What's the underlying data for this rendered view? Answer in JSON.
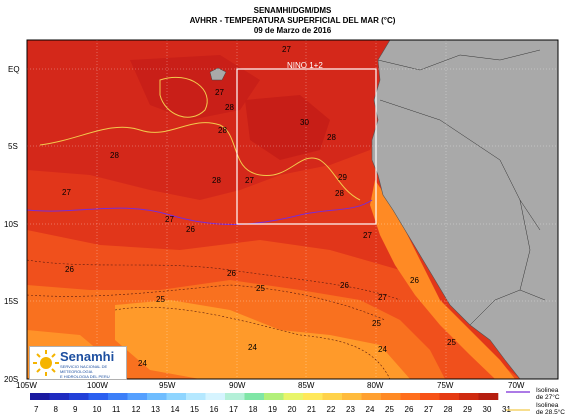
{
  "header": {
    "line1": "SENAMHI/DGM/DMS",
    "line2": "AVHRR - TEMPERATURA SUPERFICIAL DEL MAR (°C)",
    "line3": "09 de Marzo de 2016"
  },
  "region_label": "NINO 1+2",
  "lat_labels": [
    "EQ",
    "5S",
    "10S",
    "15S",
    "20S"
  ],
  "lon_labels": [
    "105W",
    "100W",
    "95W",
    "90W",
    "85W",
    "80W",
    "75W",
    "70W"
  ],
  "contour_labels": [
    "27",
    "27",
    "28",
    "28",
    "28",
    "28",
    "27",
    "27",
    "28",
    "26",
    "27",
    "26",
    "27",
    "26",
    "25",
    "25",
    "26",
    "27",
    "26",
    "25",
    "24",
    "24",
    "24",
    "24",
    "25",
    "28",
    "30",
    "29"
  ],
  "colorbar": {
    "ticks": [
      "7",
      "8",
      "9",
      "10",
      "11",
      "12",
      "13",
      "14",
      "15",
      "16",
      "17",
      "18",
      "19",
      "20",
      "21",
      "22",
      "23",
      "24",
      "25",
      "26",
      "27",
      "28",
      "29",
      "30",
      "31"
    ],
    "colors": [
      "#1a1aa0",
      "#1f2bc0",
      "#2240d8",
      "#2a5ff0",
      "#3c7ff8",
      "#55a0ff",
      "#6fbdff",
      "#8fd5ff",
      "#b5e8ff",
      "#d6f4ff",
      "#b4f0d8",
      "#7fe6a6",
      "#b2f07a",
      "#e8f56a",
      "#ffe85a",
      "#ffd24a",
      "#ffbb3c",
      "#ffa030",
      "#ff8a24",
      "#ff6e1c",
      "#f75216",
      "#e53a12",
      "#cf2a10",
      "#b51e10"
    ]
  },
  "legend": {
    "iso27_line1": "Isolinea",
    "iso27_line2": "de 27°C",
    "iso285_line1": "Isolinea",
    "iso285_line2": "de 28.5°C",
    "iso27_color": "#7a2bd6",
    "iso285_color": "#f2c94c"
  },
  "logo": {
    "name": "Senamhi",
    "sub1": "SERVICIO NACIONAL DE METEOROLOGIA",
    "sub2": "E HIDROLOGIA DEL PERU"
  },
  "colors": {
    "land": "#a9a9a9",
    "ocean_warm": "#d9281a",
    "ocean_mid": "#f4531c",
    "ocean_cool": "#ff8a24",
    "ocean_cooler": "#ffb030"
  }
}
